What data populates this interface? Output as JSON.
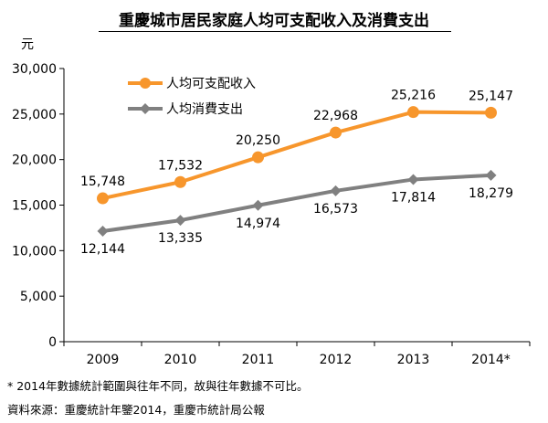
{
  "chart_data": {
    "type": "line",
    "title": "重慶城市居民家庭人均可支配收入及消費支出",
    "ylabel": "元",
    "xlabel": "",
    "categories": [
      "2009",
      "2010",
      "2011",
      "2012",
      "2013",
      "2014*"
    ],
    "ylim": [
      0,
      30000
    ],
    "yticks": [
      "0",
      "5,000",
      "10,000",
      "15,000",
      "20,000",
      "25,000",
      "30,000"
    ],
    "grid": false,
    "legend_position": "top-left",
    "series": [
      {
        "name": "人均可支配收入",
        "color": "#F7962C",
        "values": [
          15748,
          17532,
          20250,
          22968,
          25216,
          25147
        ],
        "labels": [
          "15,748",
          "17,532",
          "20,250",
          "22,968",
          "25,216",
          "25,147"
        ]
      },
      {
        "name": "人均消費支出",
        "color": "#808080",
        "values": [
          12144,
          13335,
          14974,
          16573,
          17814,
          18279
        ],
        "labels": [
          "12,144",
          "13,335",
          "14,974",
          "16,573",
          "17,814",
          "18,279"
        ]
      }
    ]
  },
  "notes": {
    "footnote": "* 2014年數據統計範圍與往年不同，故與往年數據不可比。",
    "source": "資料來源：重慶統計年鑒2014，重慶市統計局公報"
  }
}
